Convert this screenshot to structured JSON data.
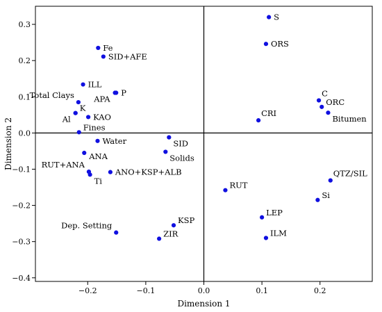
{
  "colors": {
    "point": "#1010e0",
    "axis": "#000000",
    "background": "#ffffff"
  },
  "chart_data": {
    "type": "scatter",
    "title": "",
    "xlabel": "Dimension 1",
    "ylabel": "Dimension 2",
    "xlim": [
      -0.29,
      0.29
    ],
    "ylim": [
      -0.41,
      0.35
    ],
    "xticks": [
      -0.2,
      -0.1,
      0.0,
      0.1,
      0.2
    ],
    "xtick_labels": [
      "−0.2",
      "−0.1",
      "0.0",
      "0.1",
      "0.2"
    ],
    "yticks": [
      -0.4,
      -0.3,
      -0.2,
      -0.1,
      0.0,
      0.1,
      0.2,
      0.3
    ],
    "ytick_labels": [
      "−0.4",
      "−0.3",
      "−0.2",
      "−0.1",
      "0.0",
      "0.1",
      "0.2",
      "0.3"
    ],
    "reference_lines": {
      "x": 0.0,
      "y": 0.0
    },
    "grid": false,
    "legend": "none",
    "points": [
      {
        "label": "S",
        "x": 0.112,
        "y": 0.32,
        "anchor": "right"
      },
      {
        "label": "ORS",
        "x": 0.107,
        "y": 0.246,
        "anchor": "right"
      },
      {
        "label": "Fe",
        "x": -0.182,
        "y": 0.235,
        "anchor": "right"
      },
      {
        "label": "SID+AFE",
        "x": -0.173,
        "y": 0.211,
        "anchor": "right"
      },
      {
        "label": "ILL",
        "x": -0.208,
        "y": 0.134,
        "anchor": "right"
      },
      {
        "label": "P",
        "x": -0.151,
        "y": 0.111,
        "anchor": "right"
      },
      {
        "label": "APA",
        "x": -0.153,
        "y": 0.111,
        "anchor": "below-left"
      },
      {
        "label": "Total Clays",
        "x": -0.216,
        "y": 0.085,
        "anchor": "upper-left"
      },
      {
        "label": "K",
        "x": -0.221,
        "y": 0.055,
        "anchor": "right-up"
      },
      {
        "label": "Al",
        "x": -0.221,
        "y": 0.055,
        "anchor": "below-left"
      },
      {
        "label": "KAO",
        "x": -0.199,
        "y": 0.044,
        "anchor": "right"
      },
      {
        "label": "Fines",
        "x": -0.215,
        "y": 0.002,
        "anchor": "right-up"
      },
      {
        "label": "Water",
        "x": -0.183,
        "y": -0.022,
        "anchor": "right"
      },
      {
        "label": "SID",
        "x": -0.06,
        "y": -0.012,
        "anchor": "below-right"
      },
      {
        "label": "Solids",
        "x": -0.066,
        "y": -0.052,
        "anchor": "below-right"
      },
      {
        "label": "ANA",
        "x": -0.206,
        "y": -0.055,
        "anchor": "right-down"
      },
      {
        "label": "RUT+ANA",
        "x": -0.198,
        "y": -0.107,
        "anchor": "upper-left"
      },
      {
        "label": "Ti",
        "x": -0.196,
        "y": -0.115,
        "anchor": "below-right"
      },
      {
        "label": "ANO+KSP+ALB",
        "x": -0.161,
        "y": -0.108,
        "anchor": "right"
      },
      {
        "label": "C",
        "x": 0.198,
        "y": 0.09,
        "anchor": "upper-right"
      },
      {
        "label": "ORC",
        "x": 0.203,
        "y": 0.072,
        "anchor": "right-up"
      },
      {
        "label": "Bitumen",
        "x": 0.214,
        "y": 0.056,
        "anchor": "below-right"
      },
      {
        "label": "CRI",
        "x": 0.094,
        "y": 0.035,
        "anchor": "upper-right"
      },
      {
        "label": "QTZ/SIL",
        "x": 0.218,
        "y": -0.131,
        "anchor": "upper-right"
      },
      {
        "label": "Si",
        "x": 0.196,
        "y": -0.185,
        "anchor": "right-up"
      },
      {
        "label": "RUT",
        "x": 0.037,
        "y": -0.158,
        "anchor": "right-up"
      },
      {
        "label": "LEP",
        "x": 0.1,
        "y": -0.233,
        "anchor": "right-up"
      },
      {
        "label": "ILM",
        "x": 0.107,
        "y": -0.29,
        "anchor": "right-up"
      },
      {
        "label": "KSP",
        "x": -0.052,
        "y": -0.255,
        "anchor": "right-up"
      },
      {
        "label": "ZIR",
        "x": -0.077,
        "y": -0.292,
        "anchor": "right-up"
      },
      {
        "label": "Dep. Setting",
        "x": -0.151,
        "y": -0.275,
        "anchor": "upper-left"
      }
    ]
  }
}
